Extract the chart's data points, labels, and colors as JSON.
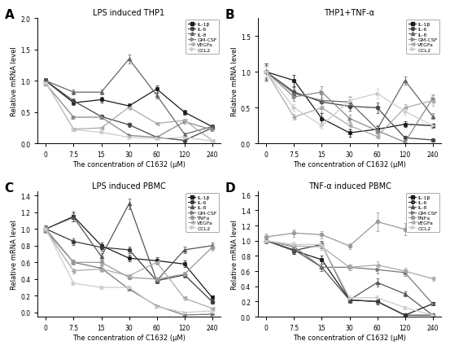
{
  "x": [
    0,
    7.5,
    15,
    30,
    60,
    120,
    240
  ],
  "panel_A": {
    "title": "LPS induced THP1",
    "ylim": [
      0,
      2.0
    ],
    "yticks": [
      0.0,
      0.5,
      1.0,
      1.5,
      2.0
    ],
    "series": {
      "IL-1β": [
        1.0,
        0.65,
        0.7,
        0.6,
        0.87,
        0.5,
        0.27
      ],
      "IL-6": [
        1.0,
        0.68,
        0.43,
        0.3,
        0.1,
        0.05,
        0.25
      ],
      "IL-8": [
        1.0,
        0.82,
        0.82,
        1.35,
        0.77,
        0.15,
        0.27
      ],
      "GM-CSF": [
        0.95,
        0.42,
        0.42,
        0.13,
        0.1,
        0.35,
        0.22
      ],
      "VEGFa": [
        0.97,
        0.23,
        0.25,
        0.58,
        0.32,
        0.37,
        0.05
      ],
      "CCL2": [
        0.97,
        0.22,
        0.18,
        0.1,
        0.08,
        0.1,
        0.04
      ]
    },
    "errors": {
      "IL-1β": [
        0.04,
        0.04,
        0.04,
        0.04,
        0.06,
        0.04,
        0.03
      ],
      "IL-6": [
        0.04,
        0.04,
        0.03,
        0.03,
        0.02,
        0.02,
        0.02
      ],
      "IL-8": [
        0.04,
        0.04,
        0.04,
        0.07,
        0.05,
        0.02,
        0.02
      ],
      "GM-CSF": [
        0.03,
        0.03,
        0.03,
        0.02,
        0.02,
        0.03,
        0.02
      ],
      "VEGFa": [
        0.03,
        0.02,
        0.02,
        0.04,
        0.02,
        0.02,
        0.01
      ],
      "CCL2": [
        0.02,
        0.02,
        0.02,
        0.01,
        0.01,
        0.01,
        0.01
      ]
    }
  },
  "panel_B": {
    "title": "THP1+TNF-α",
    "ylim": [
      0,
      1.75
    ],
    "yticks": [
      0.0,
      0.5,
      1.0,
      1.5
    ],
    "series": {
      "IL-1β": [
        1.0,
        0.88,
        0.35,
        0.15,
        0.2,
        0.27,
        0.25
      ],
      "IL-6": [
        1.0,
        0.72,
        0.58,
        0.52,
        0.5,
        0.08,
        0.05
      ],
      "IL-8": [
        1.0,
        0.7,
        0.6,
        0.58,
        0.2,
        0.88,
        0.38
      ],
      "GM-CSF": [
        1.0,
        0.65,
        0.72,
        0.35,
        0.18,
        0.02,
        0.63
      ],
      "VEGFa": [
        1.0,
        0.37,
        0.5,
        0.25,
        0.1,
        0.5,
        0.6
      ],
      "CCL2": [
        1.0,
        0.5,
        0.25,
        0.6,
        0.7,
        0.45,
        0.25
      ]
    },
    "errors": {
      "IL-1β": [
        0.12,
        0.08,
        0.08,
        0.05,
        0.04,
        0.04,
        0.03
      ],
      "IL-6": [
        0.12,
        0.07,
        0.1,
        0.06,
        0.07,
        0.03,
        0.02
      ],
      "IL-8": [
        0.1,
        0.06,
        0.08,
        0.07,
        0.05,
        0.06,
        0.04
      ],
      "GM-CSF": [
        0.09,
        0.06,
        0.08,
        0.05,
        0.04,
        0.02,
        0.06
      ],
      "VEGFa": [
        0.08,
        0.04,
        0.06,
        0.04,
        0.03,
        0.05,
        0.07
      ],
      "CCL2": [
        0.07,
        0.05,
        0.04,
        0.06,
        0.07,
        0.05,
        0.04
      ]
    }
  },
  "panel_C": {
    "title": "LPS induced PBMC",
    "ylim": [
      -0.05,
      1.45
    ],
    "yticks": [
      0.0,
      0.2,
      0.4,
      0.6,
      0.8,
      1.0,
      1.2,
      1.4
    ],
    "series": {
      "IL-1β": [
        1.0,
        1.15,
        0.8,
        0.65,
        0.62,
        0.58,
        0.18
      ],
      "IL-6": [
        1.0,
        0.85,
        0.78,
        0.75,
        0.38,
        0.45,
        0.13
      ],
      "IL-8": [
        1.0,
        1.14,
        0.67,
        1.3,
        0.38,
        0.75,
        0.8
      ],
      "GM-CSF": [
        0.98,
        0.6,
        0.53,
        0.28,
        0.08,
        -0.03,
        -0.02
      ],
      "TNFα": [
        1.0,
        0.6,
        0.6,
        0.42,
        0.4,
        0.46,
        0.78
      ],
      "VEGFa": [
        0.98,
        0.5,
        0.52,
        0.44,
        0.6,
        0.17,
        0.05
      ],
      "CCL2": [
        1.0,
        0.35,
        0.3,
        0.3,
        0.07,
        0.0,
        0.02
      ]
    },
    "errors": {
      "IL-1β": [
        0.04,
        0.06,
        0.04,
        0.04,
        0.04,
        0.04,
        0.02
      ],
      "IL-6": [
        0.04,
        0.04,
        0.04,
        0.04,
        0.03,
        0.03,
        0.02
      ],
      "IL-8": [
        0.04,
        0.05,
        0.04,
        0.06,
        0.03,
        0.04,
        0.04
      ],
      "GM-CSF": [
        0.03,
        0.03,
        0.03,
        0.02,
        0.01,
        0.01,
        0.01
      ],
      "TNFα": [
        0.03,
        0.03,
        0.03,
        0.02,
        0.02,
        0.03,
        0.04
      ],
      "VEGFa": [
        0.03,
        0.03,
        0.03,
        0.02,
        0.03,
        0.02,
        0.01
      ],
      "CCL2": [
        0.02,
        0.02,
        0.02,
        0.02,
        0.01,
        0.01,
        0.01
      ]
    }
  },
  "panel_D": {
    "title": "TNF-α induced PBMC",
    "ylim": [
      0,
      1.65
    ],
    "yticks": [
      0.0,
      0.2,
      0.4,
      0.6,
      0.8,
      1.0,
      1.2,
      1.4,
      1.6
    ],
    "series": {
      "IL-1β": [
        1.0,
        0.87,
        0.75,
        0.22,
        0.2,
        0.02,
        0.17
      ],
      "IL-6": [
        1.0,
        0.87,
        0.95,
        0.22,
        0.2,
        0.02,
        0.02
      ],
      "IL-8": [
        1.0,
        0.88,
        0.65,
        0.22,
        0.45,
        0.3,
        0.02
      ],
      "GM-CSF": [
        1.0,
        0.92,
        0.65,
        0.65,
        0.62,
        0.58,
        0.17
      ],
      "TNFα": [
        1.05,
        1.1,
        1.08,
        0.93,
        1.25,
        1.15,
        1.45
      ],
      "VEGFa": [
        1.0,
        0.93,
        0.92,
        0.65,
        0.68,
        0.6,
        0.5
      ],
      "CCL2": [
        1.0,
        0.95,
        0.95,
        0.25,
        0.25,
        0.12,
        0.02
      ]
    },
    "errors": {
      "IL-1β": [
        0.04,
        0.04,
        0.05,
        0.04,
        0.04,
        0.01,
        0.02
      ],
      "IL-6": [
        0.04,
        0.04,
        0.05,
        0.04,
        0.04,
        0.01,
        0.01
      ],
      "IL-8": [
        0.04,
        0.04,
        0.05,
        0.04,
        0.05,
        0.03,
        0.01
      ],
      "GM-CSF": [
        0.04,
        0.04,
        0.05,
        0.04,
        0.05,
        0.04,
        0.02
      ],
      "TNFα": [
        0.04,
        0.05,
        0.05,
        0.04,
        0.12,
        0.08,
        0.05
      ],
      "VEGFa": [
        0.04,
        0.04,
        0.04,
        0.04,
        0.05,
        0.04,
        0.03
      ],
      "CCL2": [
        0.04,
        0.04,
        0.04,
        0.03,
        0.03,
        0.02,
        0.01
      ]
    }
  },
  "colors_AB": {
    "IL-1β": "#1a1a1a",
    "IL-6": "#444444",
    "IL-8": "#666666",
    "GM-CSF": "#888888",
    "VEGFa": "#aaaaaa",
    "CCL2": "#cccccc"
  },
  "colors_CD": {
    "IL-1β": "#1a1a1a",
    "IL-6": "#3a3a3a",
    "IL-8": "#555555",
    "GM-CSF": "#777777",
    "TNFα": "#999999",
    "VEGFa": "#aaaaaa",
    "CCL2": "#cccccc"
  },
  "markers_AB": {
    "IL-1β": "s",
    "IL-6": "o",
    "IL-8": "^",
    "GM-CSF": ">",
    "VEGFa": "<",
    "CCL2": ">"
  },
  "markers_CD": {
    "IL-1β": "s",
    "IL-6": "o",
    "IL-8": "^",
    "GM-CSF": ">",
    "TNFα": "o",
    "VEGFa": "<",
    "CCL2": ">"
  },
  "legend_labels_AB": [
    "IL-1β",
    "IL-6",
    "IL-8",
    "GM-CSF",
    "VEGFa",
    "CCL2"
  ],
  "legend_labels_CD": [
    "IL-1β",
    "IL-6",
    "IL-8",
    "GM-CSF",
    "TNFα",
    "VEGFa",
    "CCL2"
  ],
  "xlabel": "The concentration of C1632 (μM)",
  "ylabel": "Relative mRNA level",
  "xtick_labels": [
    "0",
    "7.5",
    "15",
    "30",
    "60",
    "120",
    "240"
  ]
}
